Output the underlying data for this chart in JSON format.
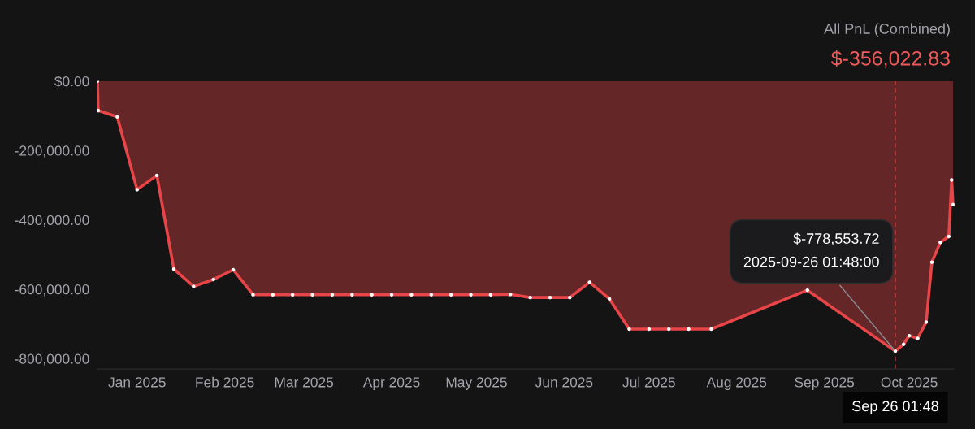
{
  "chart_data": {
    "type": "area",
    "title": "All PnL (Combined)",
    "subtitle": "$-356,022.83",
    "x": [
      "2024-12-18T00:00",
      "2024-12-18T06:00",
      "2024-12-25",
      "2025-01-01",
      "2025-01-08",
      "2025-01-14",
      "2025-01-21",
      "2025-01-28",
      "2025-02-04",
      "2025-02-11",
      "2025-02-18",
      "2025-02-25",
      "2025-03-04",
      "2025-03-11",
      "2025-03-18",
      "2025-03-25",
      "2025-04-01",
      "2025-04-08",
      "2025-04-15",
      "2025-04-22",
      "2025-04-29",
      "2025-05-06",
      "2025-05-13",
      "2025-05-20",
      "2025-05-27",
      "2025-06-03",
      "2025-06-10",
      "2025-06-17",
      "2025-06-24",
      "2025-07-01",
      "2025-07-08",
      "2025-07-15",
      "2025-07-23",
      "2025-08-26",
      "2025-09-26T01:48",
      "2025-09-29",
      "2025-10-01",
      "2025-10-04",
      "2025-10-07",
      "2025-10-09",
      "2025-10-12",
      "2025-10-15",
      "2025-10-16T00:00",
      "2025-10-16T12:00"
    ],
    "series": [
      {
        "color": "#e84548",
        "values": [
          0,
          -85000,
          -103000,
          -313000,
          -272000,
          -542000,
          -592000,
          -572000,
          -544000,
          -616000,
          -616000,
          -616000,
          -616000,
          -616000,
          -616000,
          -616000,
          -616000,
          -616000,
          -616000,
          -616000,
          -616000,
          -616000,
          -615000,
          -624000,
          -624000,
          -624000,
          -580000,
          -628000,
          -715000,
          -715000,
          -715000,
          -715000,
          -715000,
          -603000,
          -778553.72,
          -759000,
          -734000,
          -742000,
          -695000,
          -522000,
          -465000,
          -448000,
          -285000,
          -356022.83
        ]
      }
    ],
    "marker": "circle",
    "xlim": [
      "2024-12-18",
      "2025-10-17"
    ],
    "xticks": [
      {
        "value": "2025-01-01",
        "label": "Jan 2025"
      },
      {
        "value": "2025-02-01",
        "label": "Feb 2025"
      },
      {
        "value": "2025-03-01",
        "label": "Mar 2025"
      },
      {
        "value": "2025-04-01",
        "label": "Apr 2025"
      },
      {
        "value": "2025-05-01",
        "label": "May 2025"
      },
      {
        "value": "2025-06-01",
        "label": "Jun 2025"
      },
      {
        "value": "2025-07-01",
        "label": "Jul 2025"
      },
      {
        "value": "2025-08-01",
        "label": "Aug 2025"
      },
      {
        "value": "2025-09-01",
        "label": "Sep 2025"
      },
      {
        "value": "2025-10-01",
        "label": "Oct 2025"
      }
    ],
    "ylim": [
      -830000,
      0
    ],
    "yticks": [
      {
        "value": 0,
        "label": "$0.00"
      },
      {
        "value": -200000,
        "label": "-200,000.00"
      },
      {
        "value": -400000,
        "label": "-400,000.00"
      },
      {
        "value": -600000,
        "label": "-600,000.00"
      },
      {
        "value": -800000,
        "label": "-800,000.00"
      }
    ],
    "ref_lines": [
      {
        "axis": "x",
        "value": "2025-09-26T01:48",
        "label": "Sep 26 01:48",
        "color": "#e84548",
        "line_style": "dashed"
      }
    ],
    "annotations": [
      {
        "text": "$-778,553.72\n2025-09-26 01:48:00",
        "x": "2025-09-26T01:48",
        "y": -778553.72
      }
    ]
  }
}
